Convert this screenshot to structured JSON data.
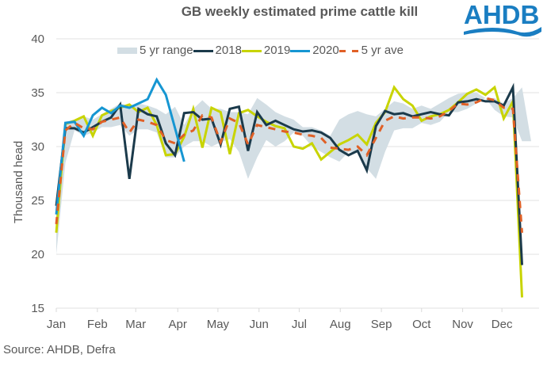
{
  "header": {
    "title": "GB weekly estimated prime cattle kill",
    "logo_text": "AHDB",
    "logo_color": "#1a7ec2"
  },
  "footer": {
    "source": "Source: AHDB, Defra"
  },
  "chart_data": {
    "type": "line",
    "title": "GB weekly estimated prime cattle kill",
    "xlabel": "",
    "ylabel": "Thousand  head",
    "ylim": [
      15,
      40
    ],
    "yticks": [
      15,
      20,
      25,
      30,
      35,
      40
    ],
    "xtick_labels": [
      "Jan",
      "Feb",
      "Mar",
      "Apr",
      "May",
      "Jun",
      "Jul",
      "Aug",
      "Sep",
      "Oct",
      "Nov",
      "Dec"
    ],
    "xtick_weeks": [
      1,
      5.5,
      9.7,
      14.3,
      18.7,
      23.2,
      27.6,
      32.1,
      36.6,
      41,
      45.5,
      49.8
    ],
    "grid": true,
    "legend_position": "top",
    "legend": [
      "5 yr range",
      "2018",
      "2019",
      "2020",
      "5 yr ave"
    ],
    "colors": {
      "range": "#d3dee4",
      "2018": "#1b3a4b",
      "2019": "#c8d400",
      "2020": "#1696d2",
      "ave": "#e06026"
    },
    "x_weeks": [
      1,
      2,
      3,
      4,
      5,
      6,
      7,
      8,
      9,
      10,
      11,
      12,
      13,
      14,
      15,
      16,
      17,
      18,
      19,
      20,
      21,
      22,
      23,
      24,
      25,
      26,
      27,
      28,
      29,
      30,
      31,
      32,
      33,
      34,
      35,
      36,
      37,
      38,
      39,
      40,
      41,
      42,
      43,
      44,
      45,
      46,
      47,
      48,
      49,
      50,
      51,
      52,
      53
    ],
    "range_low": [
      20.0,
      28.5,
      31.5,
      31.0,
      31.3,
      31.8,
      31.8,
      32.0,
      31.0,
      31.6,
      31.6,
      31.3,
      29.0,
      29.0,
      30.0,
      30.5,
      30.5,
      30.0,
      30.4,
      30.7,
      29.5,
      27.0,
      29.0,
      30.6,
      30.0,
      30.5,
      31.3,
      31.0,
      30.0,
      29.5,
      29.0,
      28.6,
      29.5,
      29.5,
      28.0,
      27.0,
      29.5,
      31.5,
      31.7,
      31.7,
      32.2,
      32.0,
      32.3,
      33.2,
      33.2,
      33.5,
      34.0,
      34.5,
      33.4,
      32.8,
      32.7,
      30.5,
      30.5
    ],
    "range_high": [
      24.5,
      32.3,
      32.5,
      32.8,
      32.5,
      33.0,
      33.5,
      34.0,
      33.8,
      34.0,
      33.8,
      33.5,
      33.0,
      33.7,
      32.0,
      33.5,
      34.3,
      33.5,
      33.5,
      33.2,
      33.2,
      33.0,
      34.5,
      33.9,
      33.2,
      32.8,
      32.5,
      31.8,
      31.8,
      31.5,
      31.0,
      32.5,
      33.0,
      33.3,
      33.0,
      32.8,
      33.5,
      34.2,
      34.0,
      33.5,
      33.8,
      33.5,
      34.0,
      34.5,
      34.9,
      35.0,
      35.0,
      34.5,
      34.5,
      34.0,
      34.5,
      35.5,
      30.5
    ],
    "series": [
      {
        "name": "2018",
        "values": [
          24.5,
          31.7,
          31.7,
          31.3,
          31.8,
          32.3,
          32.7,
          33.9,
          27.0,
          33.5,
          33.0,
          32.8,
          30.3,
          29.2,
          33.1,
          33.2,
          32.5,
          32.6,
          30.2,
          33.5,
          33.7,
          29.6,
          33.2,
          32.0,
          32.4,
          32.0,
          31.6,
          31.4,
          31.5,
          31.3,
          30.8,
          29.7,
          29.2,
          29.6,
          27.8,
          31.9,
          33.3,
          33.0,
          33.1,
          32.8,
          33.0,
          33.2,
          33.0,
          32.9,
          34.1,
          34.2,
          34.4,
          34.2,
          34.2,
          33.8,
          35.5,
          19.0,
          null
        ]
      },
      {
        "name": "2019",
        "values": [
          22.0,
          32.1,
          32.4,
          32.8,
          31.0,
          32.9,
          33.3,
          33.6,
          33.9,
          33.2,
          33.6,
          32.0,
          29.2,
          29.3,
          30.9,
          33.5,
          29.9,
          33.6,
          33.2,
          29.3,
          33.1,
          33.4,
          32.8,
          32.3,
          31.9,
          31.7,
          30.0,
          29.8,
          30.3,
          28.8,
          29.5,
          30.2,
          30.6,
          31.1,
          30.2,
          32.2,
          33.2,
          35.5,
          34.4,
          33.8,
          32.4,
          32.8,
          33.0,
          33.4,
          34.1,
          34.9,
          35.3,
          34.8,
          35.5,
          32.6,
          34.2,
          16.0,
          null
        ]
      },
      {
        "name": "2020",
        "values": [
          23.7,
          32.2,
          32.3,
          31.0,
          32.9,
          33.6,
          33.1,
          33.8,
          33.6,
          34.0,
          34.4,
          36.2,
          34.8,
          31.7,
          28.6,
          null,
          null,
          null,
          null,
          null,
          null,
          null,
          null,
          null,
          null,
          null,
          null,
          null,
          null,
          null,
          null,
          null,
          null,
          null,
          null,
          null,
          null,
          null,
          null,
          null,
          null,
          null,
          null,
          null,
          null,
          null,
          null,
          null,
          null,
          null,
          null,
          null,
          null
        ]
      },
      {
        "name": "5 yr ave",
        "values": [
          22.8,
          31.5,
          32.2,
          31.7,
          31.6,
          32.3,
          32.5,
          32.7,
          31.3,
          32.5,
          32.3,
          32.0,
          30.6,
          30.3,
          31.1,
          31.5,
          32.9,
          32.7,
          30.4,
          32.6,
          32.2,
          30.2,
          32.0,
          31.8,
          31.6,
          31.4,
          31.3,
          31.1,
          31.0,
          30.8,
          29.9,
          29.8,
          29.7,
          30.0,
          29.2,
          30.8,
          32.4,
          32.8,
          32.6,
          32.7,
          32.7,
          32.6,
          32.8,
          33.3,
          34.0,
          33.9,
          34.1,
          34.5,
          34.3,
          33.6,
          33.5,
          22.0,
          null
        ]
      }
    ]
  }
}
